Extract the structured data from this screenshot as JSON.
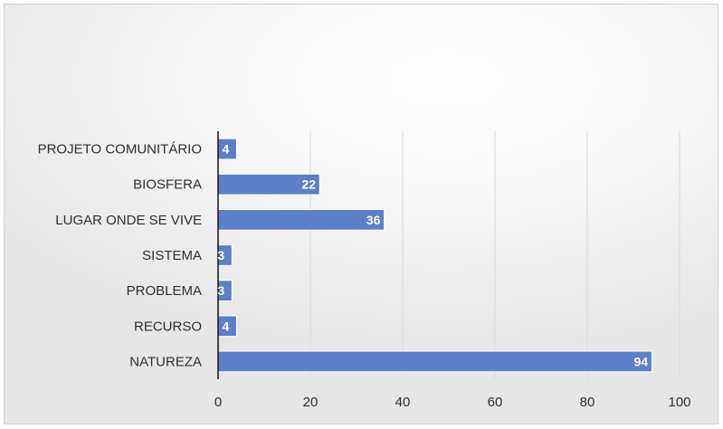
{
  "chart_data": {
    "type": "bar",
    "orientation": "horizontal",
    "categories": [
      "PROJETO COMUNITÁRIO",
      "BIOSFERA",
      "LUGAR ONDE SE VIVE",
      "SISTEMA",
      "PROBLEMA",
      "RECURSO",
      "NATUREZA"
    ],
    "values": [
      4,
      22,
      36,
      3,
      3,
      4,
      94
    ],
    "title": "",
    "xlabel": "",
    "ylabel": "",
    "xlim": [
      0,
      100
    ],
    "x_ticks": [
      "0",
      "20",
      "40",
      "60",
      "80",
      "100"
    ],
    "grid": true,
    "legend": "none",
    "data_labels": true,
    "colors": {
      "bar": "#5b7fc8",
      "bar_edge": "#ffffff",
      "gridline": "#d9d9d9",
      "axis_line": "#1f1f1f",
      "data_label": "#ffffff"
    }
  }
}
